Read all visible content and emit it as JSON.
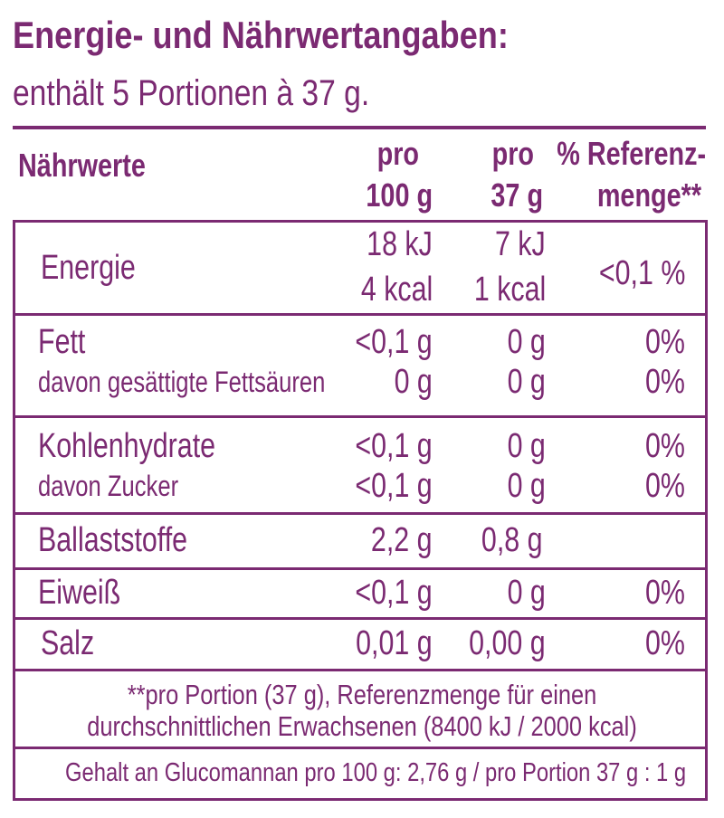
{
  "header": {
    "title": "Energie- und Nährwertangaben:",
    "subtitle": "enthält 5 Portionen à 37 g."
  },
  "table": {
    "columns": [
      "Nährwerte",
      [
        "pro",
        "100 g"
      ],
      [
        "pro",
        "37 g"
      ],
      [
        "% Referenz-",
        "menge**"
      ]
    ],
    "rows": [
      {
        "label": "Energie",
        "per_100g": [
          "18 kJ",
          "4 kcal"
        ],
        "per_portion": [
          "7 kJ",
          "1 kcal"
        ],
        "reference": "<0,1 %"
      },
      {
        "label": "Fett",
        "per_100g": "<0,1 g",
        "per_portion": "0 g",
        "reference": "0%"
      },
      {
        "label": "davon gesättigte Fettsäuren",
        "per_100g": "0 g",
        "per_portion": "0 g",
        "reference": "0%"
      },
      {
        "label": "Kohlenhydrate",
        "per_100g": "<0,1 g",
        "per_portion": "0 g",
        "reference": "0%"
      },
      {
        "label": "davon Zucker",
        "per_100g": "<0,1 g",
        "per_portion": "0 g",
        "reference": "0%"
      },
      {
        "label": "Ballaststoffe",
        "per_100g": "2,2 g",
        "per_portion": "0,8 g"
      },
      {
        "label": "Eiweiß",
        "per_100g": "<0,1 g",
        "per_portion": "0 g",
        "reference": "0%"
      },
      {
        "label": "Salz",
        "per_100g": "0,01 g",
        "per_portion": "0,00 g",
        "reference": "0%"
      }
    ],
    "footnote": [
      "**pro Portion (37 g), Referenzmenge für einen",
      "durchschnittlichen Erwachsenen (8400 kJ / 2000 kcal)"
    ],
    "glucomannan": "Gehalt an Glucomannan pro 100 g: 2,76 g / pro Portion 37 g : 1 g"
  }
}
